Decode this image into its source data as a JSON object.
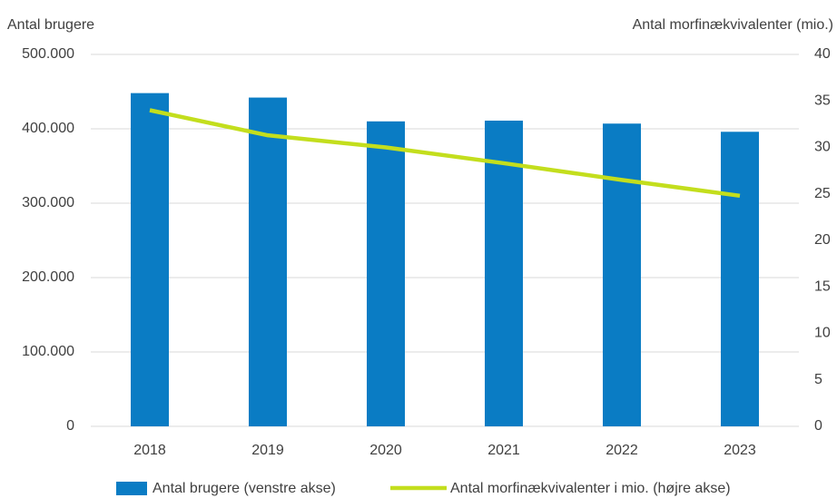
{
  "chart_data": {
    "type": "bar_line",
    "y_label": "Antal brugere",
    "y2_label": "Antal morfinækvivalenter (mio.)",
    "categories": [
      "2018",
      "2019",
      "2020",
      "2021",
      "2022",
      "2023"
    ],
    "series": [
      {
        "name": "Antal brugere (venstre akse)",
        "type": "bar",
        "color": "#0a7cc4",
        "values": [
          448000,
          442000,
          410000,
          411000,
          407000,
          396000
        ]
      },
      {
        "name": "Antal morfinækvivalenter i mio. (højre akse)",
        "type": "line",
        "axis": "y2",
        "color": "#c3de1d",
        "values": [
          34.0,
          31.3,
          30.0,
          28.3,
          26.5,
          24.8
        ]
      }
    ],
    "ylim": [
      0,
      500000
    ],
    "yticks": [
      0,
      {
        "value": 100000,
        "label": "100.000"
      },
      {
        "value": 200000,
        "label": "200.000"
      },
      {
        "value": 300000,
        "label": "300.000"
      },
      {
        "value": 400000,
        "label": "400.000"
      },
      {
        "value": 500000,
        "label": "500.000"
      }
    ],
    "y2lim": [
      0,
      40
    ],
    "y2ticks": [
      0,
      5,
      10,
      15,
      20,
      25,
      30,
      35,
      40
    ],
    "grid": true,
    "legend": "bottom"
  }
}
